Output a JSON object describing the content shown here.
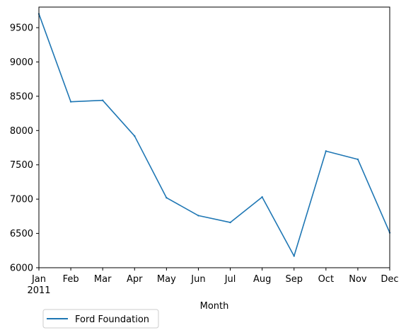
{
  "chart_data": {
    "type": "line",
    "xlabel": "Month",
    "ylabel": "",
    "ylim": [
      6000,
      9800
    ],
    "yticks": [
      6000,
      6500,
      7000,
      7500,
      8000,
      8500,
      9000,
      9500
    ],
    "categories": [
      "Jan",
      "Feb",
      "Mar",
      "Apr",
      "May",
      "Jun",
      "Jul",
      "Aug",
      "Sep",
      "Oct",
      "Nov",
      "Dec"
    ],
    "year_label": "2011",
    "series": [
      {
        "name": "Ford Foundation",
        "color": "#1f77b4",
        "values": [
          9700,
          8420,
          8440,
          7920,
          7020,
          6760,
          6660,
          7030,
          6170,
          7700,
          7580,
          6510
        ]
      }
    ],
    "grid": false,
    "legend_position": "bottom-left"
  }
}
